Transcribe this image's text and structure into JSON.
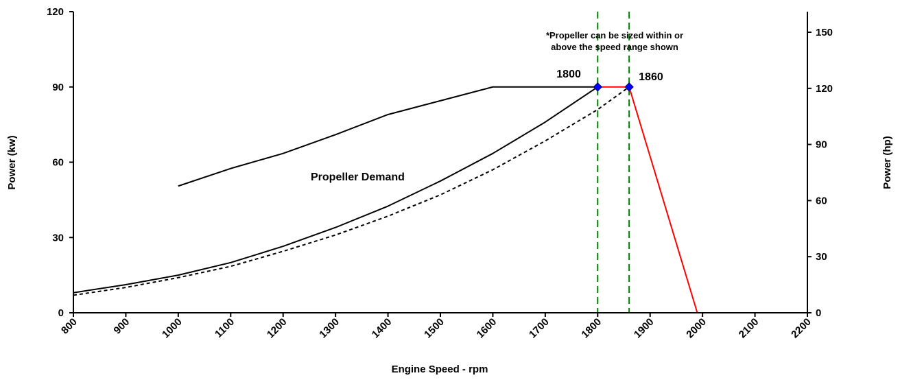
{
  "chart_data": {
    "type": "line",
    "xlabel": "Engine Speed - rpm",
    "ylabel_left": "Power (kw)",
    "ylabel_right": "Power (hp)",
    "xlim": [
      800,
      2200
    ],
    "ylim_left": [
      0,
      120
    ],
    "ylim_right": [
      0,
      161
    ],
    "x_ticks": [
      "800",
      "900",
      "1000",
      "1100",
      "1200",
      "1300",
      "1400",
      "1500",
      "1600",
      "1700",
      "1800",
      "1900",
      "2000",
      "2100",
      "2200"
    ],
    "y_ticks_left": [
      "0",
      "30",
      "60",
      "90",
      "120"
    ],
    "y_ticks_right": [
      "0",
      "30",
      "60",
      "90",
      "120",
      "150"
    ],
    "series": [
      {
        "color": "#000000",
        "style": "solid",
        "points": [
          [
            1000,
            50.5
          ],
          [
            1100,
            57.5
          ],
          [
            1200,
            63.5
          ],
          [
            1300,
            71
          ],
          [
            1400,
            79
          ],
          [
            1500,
            84.5
          ],
          [
            1600,
            90
          ],
          [
            1800,
            90
          ]
        ]
      },
      {
        "color": "#000000",
        "style": "solid",
        "points": [
          [
            800,
            8
          ],
          [
            900,
            11.2
          ],
          [
            1000,
            15
          ],
          [
            1100,
            20
          ],
          [
            1200,
            26.5
          ],
          [
            1300,
            34
          ],
          [
            1400,
            42.5
          ],
          [
            1500,
            52.5
          ],
          [
            1600,
            63.5
          ],
          [
            1700,
            76
          ],
          [
            1800,
            90
          ]
        ]
      },
      {
        "color": "#000000",
        "style": "dashed",
        "points": [
          [
            800,
            7
          ],
          [
            900,
            10.1
          ],
          [
            1000,
            14
          ],
          [
            1100,
            18.5
          ],
          [
            1200,
            24.5
          ],
          [
            1300,
            31
          ],
          [
            1400,
            38.5
          ],
          [
            1500,
            47
          ],
          [
            1600,
            57
          ],
          [
            1700,
            68.5
          ],
          [
            1800,
            81
          ],
          [
            1860,
            90
          ]
        ]
      },
      {
        "color": "#ff0000",
        "style": "solid",
        "points": [
          [
            1800,
            90
          ],
          [
            1860,
            90
          ],
          [
            1990,
            0
          ]
        ]
      }
    ],
    "markers": [
      {
        "x": 1800,
        "y": 90,
        "label": "1800",
        "color": "#0000ff"
      },
      {
        "x": 1860,
        "y": 90,
        "label": "1860",
        "color": "#0000ff"
      }
    ],
    "vlines": [
      {
        "x": 1800,
        "color": "#008000"
      },
      {
        "x": 1860,
        "color": "#008000"
      }
    ],
    "annotations": {
      "curve_label": "Propeller Demand",
      "note_line1": "*Propeller can be sized within or",
      "note_line2": "above the speed range shown"
    },
    "grid": false
  }
}
